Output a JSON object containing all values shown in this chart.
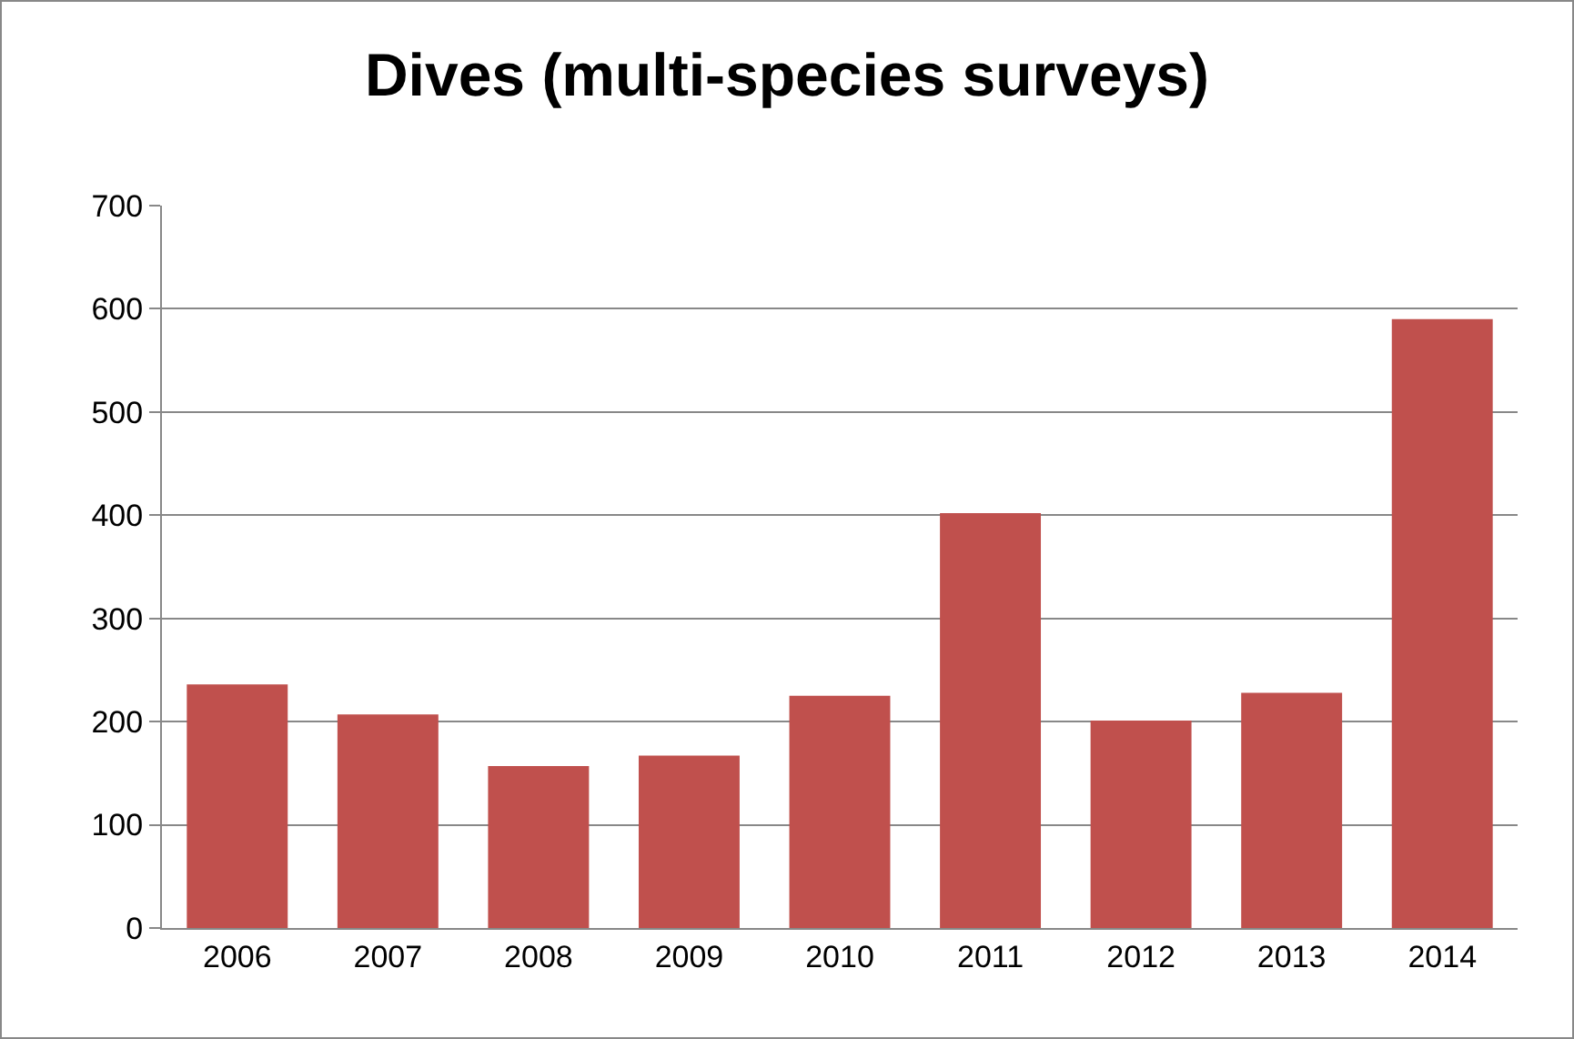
{
  "chart_data": {
    "type": "bar",
    "title": "Dives (multi-species surveys)",
    "categories": [
      "2006",
      "2007",
      "2008",
      "2009",
      "2010",
      "2011",
      "2012",
      "2013",
      "2014"
    ],
    "values": [
      236,
      207,
      157,
      167,
      225,
      402,
      201,
      228,
      590
    ],
    "color": "#c0504d",
    "ylim": [
      0,
      700
    ],
    "yticks": [
      0,
      100,
      200,
      300,
      400,
      500,
      600,
      700
    ],
    "grid": "y"
  }
}
